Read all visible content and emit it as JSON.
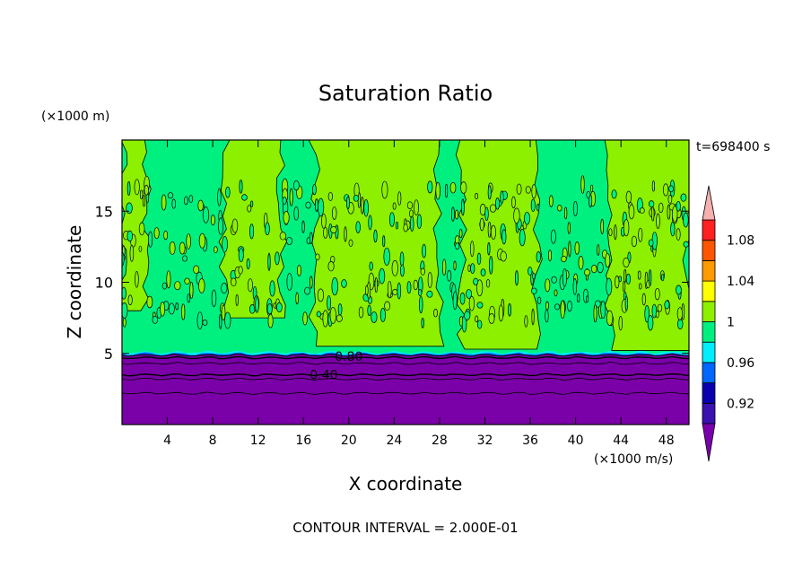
{
  "chart_data": {
    "type": "heatmap",
    "title": "Saturation Ratio",
    "xlabel": "X coordinate",
    "ylabel": "Z coordinate",
    "x_unit": "(×1000 m/s)",
    "y_unit": "(×1000 m)",
    "time_label": "t=698400 s",
    "footer": "CONTOUR INTERVAL = 2.000E-01",
    "xlim": [
      0,
      50
    ],
    "ylim": [
      0,
      20
    ],
    "x_ticks": [
      4,
      8,
      12,
      16,
      20,
      24,
      28,
      32,
      36,
      40,
      44,
      48
    ],
    "y_ticks": [
      5,
      10,
      15
    ],
    "contour_interval": 0.2,
    "contour_labels": [
      {
        "x": 20,
        "y": 4.8,
        "text": "0.80"
      },
      {
        "x": 17.8,
        "y": 3.5,
        "text": "0.40"
      }
    ],
    "colorbar": {
      "levels": [
        0.92,
        0.96,
        1,
        1.04,
        1.08
      ],
      "level_labels": [
        "0.92",
        "0.96",
        "1",
        "1.04",
        "1.08"
      ],
      "colors": [
        "#7b00ad",
        "#3a12b0",
        "#0a00b0",
        "#0066ff",
        "#00eeff",
        "#00f080",
        "#8cf000",
        "#ffff00",
        "#ff9900",
        "#ff5500",
        "#ff2020",
        "#f7b0b0"
      ]
    },
    "colors": {
      "low": "#7a00a8",
      "near_one_below": "#00f080",
      "near_one_above": "#8cf000",
      "cyan": "#00eeff",
      "blue": "#0066ff"
    },
    "regions": {
      "dry_layer_top_z": 5,
      "supersaturated_columns_x": [
        [
          0,
          2
        ],
        [
          9,
          14
        ],
        [
          17,
          28
        ],
        [
          30,
          36.5
        ],
        [
          43,
          50
        ]
      ],
      "supersaturated_column_bottoms_z": [
        8,
        7.5,
        5.5,
        5.3,
        5.2
      ]
    }
  }
}
